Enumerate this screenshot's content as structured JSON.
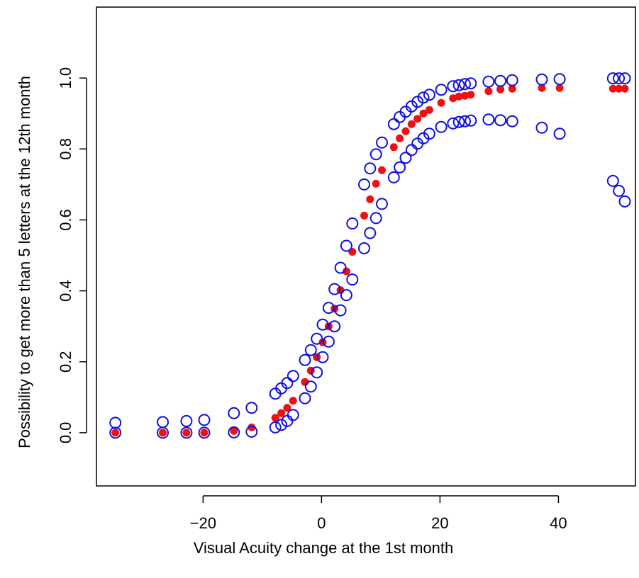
{
  "chart_data": {
    "type": "scatter",
    "title": "",
    "xlabel": "Visual Acuity change at the 1st month",
    "ylabel": "Possibility to get more than 5 letters at the 12th month",
    "xlim": [
      -38,
      53
    ],
    "ylim": [
      -0.15,
      1.2
    ],
    "x_ticks": [
      -20,
      0,
      20,
      40
    ],
    "x_tick_labels": [
      "−20",
      "0",
      "20",
      "40"
    ],
    "y_ticks": [
      0.0,
      0.2,
      0.4,
      0.6,
      0.8,
      1.0
    ],
    "y_tick_labels": [
      "0.0",
      "0.2",
      "0.4",
      "0.6",
      "0.8",
      "1.0"
    ],
    "grid": false,
    "legend": null,
    "series": [
      {
        "marker": "filled-circle",
        "color": "#ee1111",
        "points": [
          [
            -34.8,
            0.0
          ],
          [
            -26.8,
            0.0
          ],
          [
            -22.8,
            0.0
          ],
          [
            -19.8,
            0.0
          ],
          [
            -14.8,
            0.005
          ],
          [
            -11.8,
            0.015
          ],
          [
            -7.8,
            0.042
          ],
          [
            -6.8,
            0.055
          ],
          [
            -5.8,
            0.07
          ],
          [
            -4.8,
            0.09
          ],
          [
            -2.8,
            0.143
          ],
          [
            -1.8,
            0.175
          ],
          [
            -0.8,
            0.213
          ],
          [
            0.2,
            0.255
          ],
          [
            1.2,
            0.3
          ],
          [
            2.2,
            0.35
          ],
          [
            3.2,
            0.402
          ],
          [
            4.2,
            0.455
          ],
          [
            5.2,
            0.51
          ],
          [
            7.2,
            0.612
          ],
          [
            8.2,
            0.658
          ],
          [
            9.2,
            0.702
          ],
          [
            10.2,
            0.74
          ],
          [
            12.2,
            0.805
          ],
          [
            13.2,
            0.83
          ],
          [
            14.2,
            0.85
          ],
          [
            15.2,
            0.87
          ],
          [
            16.2,
            0.885
          ],
          [
            17.2,
            0.9
          ],
          [
            18.2,
            0.91
          ],
          [
            20.2,
            0.93
          ],
          [
            22.2,
            0.943
          ],
          [
            23.2,
            0.948
          ],
          [
            24.2,
            0.95
          ],
          [
            25.2,
            0.953
          ],
          [
            28.2,
            0.963
          ],
          [
            30.2,
            0.968
          ],
          [
            32.2,
            0.97
          ],
          [
            37.2,
            0.972
          ],
          [
            40.2,
            0.972
          ],
          [
            49.2,
            0.97
          ],
          [
            50.2,
            0.97
          ],
          [
            51.2,
            0.97
          ]
        ]
      },
      {
        "marker": "open-circle",
        "color": "#1010dd",
        "points": [
          [
            -34.8,
            0.028
          ],
          [
            -26.8,
            0.03
          ],
          [
            -22.8,
            0.033
          ],
          [
            -19.8,
            0.036
          ],
          [
            -14.8,
            0.055
          ],
          [
            -11.8,
            0.07
          ],
          [
            -7.8,
            0.11
          ],
          [
            -6.8,
            0.125
          ],
          [
            -5.8,
            0.14
          ],
          [
            -4.8,
            0.16
          ],
          [
            -2.8,
            0.205
          ],
          [
            -1.8,
            0.233
          ],
          [
            -0.8,
            0.265
          ],
          [
            0.2,
            0.305
          ],
          [
            1.2,
            0.352
          ],
          [
            2.2,
            0.405
          ],
          [
            3.2,
            0.465
          ],
          [
            4.2,
            0.527
          ],
          [
            5.2,
            0.59
          ],
          [
            7.2,
            0.7
          ],
          [
            8.2,
            0.745
          ],
          [
            9.2,
            0.785
          ],
          [
            10.2,
            0.818
          ],
          [
            12.2,
            0.87
          ],
          [
            13.2,
            0.89
          ],
          [
            14.2,
            0.905
          ],
          [
            15.2,
            0.92
          ],
          [
            16.2,
            0.933
          ],
          [
            17.2,
            0.945
          ],
          [
            18.2,
            0.953
          ],
          [
            20.2,
            0.967
          ],
          [
            22.2,
            0.977
          ],
          [
            23.2,
            0.98
          ],
          [
            24.2,
            0.983
          ],
          [
            25.2,
            0.985
          ],
          [
            28.2,
            0.99
          ],
          [
            30.2,
            0.992
          ],
          [
            32.2,
            0.994
          ],
          [
            37.2,
            0.996
          ],
          [
            40.2,
            0.997
          ],
          [
            49.2,
            0.999
          ],
          [
            50.2,
            0.999
          ],
          [
            51.2,
            0.999
          ]
        ]
      },
      {
        "marker": "open-circle",
        "color": "#1010dd",
        "points": [
          [
            -34.8,
            0.0
          ],
          [
            -26.8,
            0.0
          ],
          [
            -22.8,
            0.0
          ],
          [
            -19.8,
            0.0
          ],
          [
            -14.8,
            0.001
          ],
          [
            -11.8,
            0.003
          ],
          [
            -7.8,
            0.015
          ],
          [
            -6.8,
            0.022
          ],
          [
            -5.8,
            0.033
          ],
          [
            -4.8,
            0.05
          ],
          [
            -2.8,
            0.097
          ],
          [
            -1.8,
            0.13
          ],
          [
            -0.8,
            0.17
          ],
          [
            0.2,
            0.213
          ],
          [
            1.2,
            0.257
          ],
          [
            2.2,
            0.3
          ],
          [
            3.2,
            0.345
          ],
          [
            4.2,
            0.388
          ],
          [
            5.2,
            0.432
          ],
          [
            7.2,
            0.52
          ],
          [
            8.2,
            0.563
          ],
          [
            9.2,
            0.605
          ],
          [
            10.2,
            0.645
          ],
          [
            12.2,
            0.72
          ],
          [
            13.2,
            0.748
          ],
          [
            14.2,
            0.775
          ],
          [
            15.2,
            0.797
          ],
          [
            16.2,
            0.815
          ],
          [
            17.2,
            0.83
          ],
          [
            18.2,
            0.843
          ],
          [
            20.2,
            0.862
          ],
          [
            22.2,
            0.872
          ],
          [
            23.2,
            0.876
          ],
          [
            24.2,
            0.878
          ],
          [
            25.2,
            0.88
          ],
          [
            28.2,
            0.883
          ],
          [
            30.2,
            0.881
          ],
          [
            32.2,
            0.878
          ],
          [
            37.2,
            0.86
          ],
          [
            40.2,
            0.843
          ],
          [
            49.2,
            0.71
          ],
          [
            50.2,
            0.682
          ],
          [
            51.2,
            0.652
          ]
        ]
      }
    ]
  }
}
